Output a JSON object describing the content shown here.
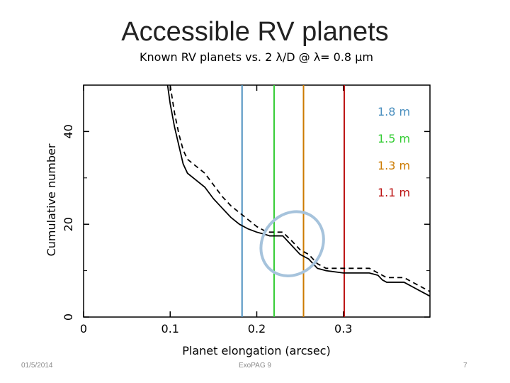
{
  "slide": {
    "title": "Accessible RV planets",
    "footer_date": "01/5/2014",
    "footer_center": "ExoPAG 9",
    "page_number": "7"
  },
  "chart_data": {
    "type": "line",
    "title": "Known RV planets vs. 2 λ/D @ λ= 0.8 μm",
    "xlabel": "Planet elongation (arcsec)",
    "ylabel": "Cumulative number",
    "xlim": [
      0,
      0.4
    ],
    "ylim": [
      0,
      50
    ],
    "xticks": [
      0,
      0.1,
      0.2,
      0.3
    ],
    "xtick_labels": [
      "0",
      "0.1",
      "0.2",
      "0.3"
    ],
    "yticks": [
      0,
      20,
      40
    ],
    "ytick_labels": [
      "0",
      "20",
      "40"
    ],
    "series": [
      {
        "name": "solid",
        "style": "solid",
        "color": "#000000",
        "x": [
          0.097,
          0.1,
          0.105,
          0.11,
          0.115,
          0.12,
          0.13,
          0.14,
          0.15,
          0.16,
          0.17,
          0.18,
          0.19,
          0.2,
          0.21,
          0.215,
          0.22,
          0.23,
          0.24,
          0.25,
          0.26,
          0.27,
          0.28,
          0.3,
          0.33,
          0.34,
          0.345,
          0.35,
          0.37,
          0.375,
          0.38,
          0.39,
          0.4
        ],
        "y": [
          50,
          46,
          41,
          37,
          33,
          31,
          29.5,
          28,
          25.5,
          23.5,
          21.5,
          20,
          19,
          18.3,
          17.8,
          17.5,
          17.5,
          17.5,
          15.5,
          13.5,
          12.5,
          10.5,
          10,
          9.5,
          9.5,
          9,
          8,
          7.5,
          7.5,
          7,
          6.5,
          5.5,
          4.5
        ]
      },
      {
        "name": "dashed",
        "style": "dashed",
        "color": "#000000",
        "x": [
          0.1,
          0.105,
          0.11,
          0.115,
          0.12,
          0.13,
          0.14,
          0.15,
          0.16,
          0.17,
          0.18,
          0.19,
          0.2,
          0.21,
          0.215,
          0.22,
          0.23,
          0.24,
          0.25,
          0.26,
          0.27,
          0.28,
          0.3,
          0.31,
          0.33,
          0.34,
          0.345,
          0.35,
          0.37,
          0.375,
          0.38,
          0.39,
          0.4
        ],
        "y": [
          50,
          44,
          39.5,
          36,
          34,
          32.5,
          31,
          28.5,
          26,
          24,
          22.5,
          21,
          19.5,
          18.5,
          18.3,
          18.3,
          18.3,
          16.5,
          14.5,
          13.5,
          11.5,
          10.5,
          10.5,
          10.5,
          10.5,
          9.5,
          9,
          8.5,
          8.5,
          8,
          7.5,
          6.5,
          5.5
        ]
      }
    ],
    "vlines": [
      {
        "x": 0.183,
        "color": "#4a8fbf",
        "label": "1.8 m"
      },
      {
        "x": 0.22,
        "color": "#33cc33",
        "label": "1.5 m"
      },
      {
        "x": 0.254,
        "color": "#cc7a00",
        "label": "1.3 m"
      },
      {
        "x": 0.301,
        "color": "#bb1111",
        "label": "1.1 m"
      }
    ],
    "annotation": {
      "type": "ellipse",
      "color": "#a6c3dc",
      "center": {
        "x": 0.241,
        "y": 15.8
      },
      "radius_x": 0.034,
      "radius_y": 7.3,
      "rotation_deg": 40
    }
  }
}
